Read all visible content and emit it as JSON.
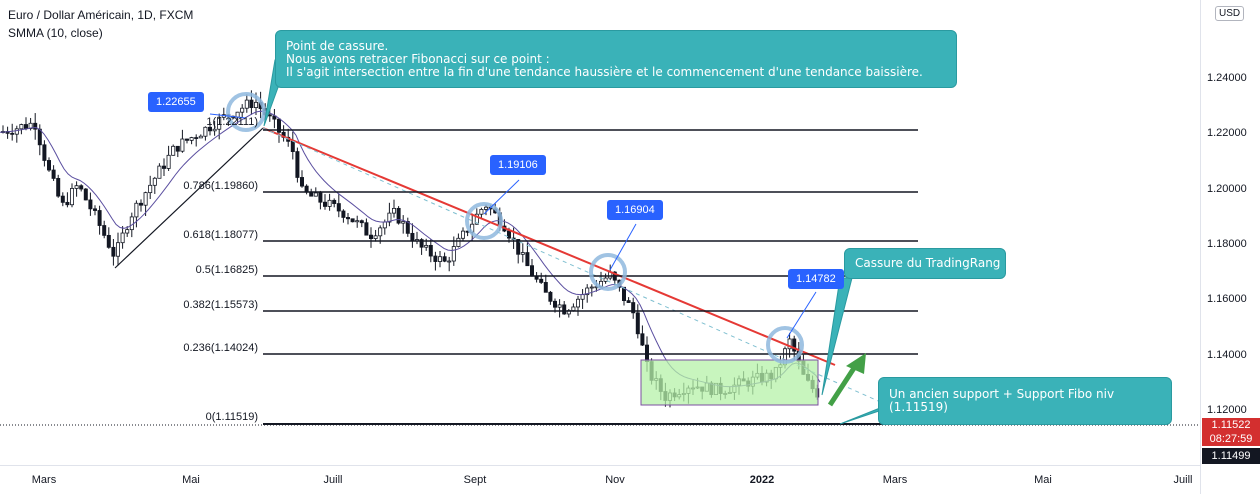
{
  "header": {
    "symbol": "Euro / Dollar Américain, 1D, FXCM",
    "indicator": "SMMA (10, close)"
  },
  "currency_button": "USD",
  "price_axis": {
    "ticks": [
      "1.24000",
      "1.22000",
      "1.20000",
      "1.18000",
      "1.16000",
      "1.14000",
      "1.12000"
    ],
    "current_price": "1.11522",
    "countdown": "08:27:59",
    "crosshair_price": "1.11499"
  },
  "time_axis": {
    "labels": [
      "Mars",
      "Mai",
      "Juill",
      "Sept",
      "Nov",
      "2022",
      "Mars",
      "Mai",
      "Juill"
    ]
  },
  "fib_levels": [
    "1(1.22111)",
    "0.786(1.19860)",
    "0.618(1.18077)",
    "0.5(1.16825)",
    "0.382(1.15573)",
    "0.236(1.14024)",
    "0(1.11519)"
  ],
  "price_labels": [
    "1.22655",
    "1.19106",
    "1.16904",
    "1.14782"
  ],
  "callouts": {
    "top": [
      "Point de cassure.",
      "Nous avons retracer Fibonacci sur ce point :",
      "Il s'agit intersection entre la fin d'une tendance haussière et le commencement d'une tendance baissière."
    ],
    "breakout": "Cassure du TradingRang",
    "support": "Un ancien support + Support Fibo niv (1.11519)"
  },
  "colors": {
    "up": "#26a69a",
    "down": "#131722",
    "smma": "#5b4fa0",
    "trend": "#e53935",
    "range_fill": "#b6f2a8",
    "range_border": "#7b4fa0",
    "callout": "#3ab2b8",
    "price_box": "#2962ff",
    "arrow": "#43a047"
  },
  "chart_data": {
    "type": "line",
    "title": "Euro / Dollar Américain, 1D, FXCM",
    "y_range": [
      1.11,
      1.245
    ],
    "y_ticks": [
      1.12,
      1.14,
      1.16,
      1.18,
      1.2,
      1.22,
      1.24
    ],
    "x_ticks": [
      "Mars",
      "Mai",
      "Juill",
      "Sept",
      "Nov",
      "2022",
      "Mars",
      "Mai",
      "Juill"
    ],
    "series": [
      {
        "name": "SMMA (10, close)",
        "x": [
          "2021-02",
          "2021-03",
          "2021-04",
          "2021-05",
          "2021-06",
          "2021-07",
          "2021-08",
          "2021-09",
          "2021-10",
          "2021-11",
          "2021-12",
          "2022-01"
        ],
        "values": [
          1.212,
          1.195,
          1.178,
          1.215,
          1.218,
          1.187,
          1.177,
          1.182,
          1.162,
          1.138,
          1.131,
          1.131
        ]
      }
    ],
    "fibonacci": [
      {
        "ratio": "1",
        "value": 1.22111
      },
      {
        "ratio": "0.786",
        "value": 1.1986
      },
      {
        "ratio": "0.618",
        "value": 1.18077
      },
      {
        "ratio": "0.5",
        "value": 1.16825
      },
      {
        "ratio": "0.382",
        "value": 1.15573
      },
      {
        "ratio": "0.236",
        "value": 1.14024
      },
      {
        "ratio": "0",
        "value": 1.11519
      }
    ],
    "marked_points": [
      1.22655,
      1.19106,
      1.16904,
      1.14782
    ],
    "current_price": 1.11522
  }
}
